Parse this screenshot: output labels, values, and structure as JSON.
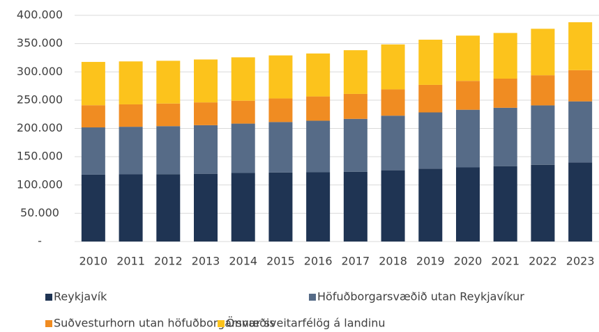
{
  "chart_data": {
    "type": "stacked_bar",
    "categories": [
      "2010",
      "2011",
      "2012",
      "2013",
      "2014",
      "2015",
      "2016",
      "2017",
      "2018",
      "2019",
      "2020",
      "2021",
      "2022",
      "2023"
    ],
    "series": [
      {
        "name": "Reykjavík",
        "color": "#1f3453",
        "values": [
          118300,
          118800,
          119100,
          119800,
          121200,
          122000,
          122500,
          123200,
          126000,
          128800,
          131100,
          133300,
          135700,
          139900
        ]
      },
      {
        "name": "Höfuðborgarsvæðið utan Reykjavíkur",
        "color": "#566b87",
        "values": [
          83500,
          84100,
          84900,
          85900,
          87300,
          89300,
          91100,
          93700,
          96500,
          99500,
          101900,
          103200,
          105000,
          107900
        ]
      },
      {
        "name": "Suðvesturhorn utan höfuðborgarsvæðis",
        "color": "#f08c22",
        "values": [
          39200,
          39600,
          40000,
          40300,
          40500,
          41700,
          42900,
          44100,
          46500,
          48700,
          51000,
          51500,
          53300,
          55200
        ]
      },
      {
        "name": "Önnur sveitarfélög á landinu",
        "color": "#fcc31c",
        "values": [
          76600,
          76000,
          75600,
          75900,
          76700,
          76100,
          76000,
          77300,
          79500,
          79900,
          80100,
          80800,
          82200,
          84800
        ]
      }
    ],
    "ylim": [
      0,
      400000
    ],
    "yticks": [
      {
        "value": 0,
        "label": "-"
      },
      {
        "value": 50000,
        "label": "50.000"
      },
      {
        "value": 100000,
        "label": "100.000"
      },
      {
        "value": 150000,
        "label": "150.000"
      },
      {
        "value": 200000,
        "label": "200.000"
      },
      {
        "value": 250000,
        "label": "250.000"
      },
      {
        "value": 300000,
        "label": "300.000"
      },
      {
        "value": 350000,
        "label": "350.000"
      },
      {
        "value": 400000,
        "label": "400.000"
      }
    ],
    "grid": true,
    "legend": "bottom"
  }
}
